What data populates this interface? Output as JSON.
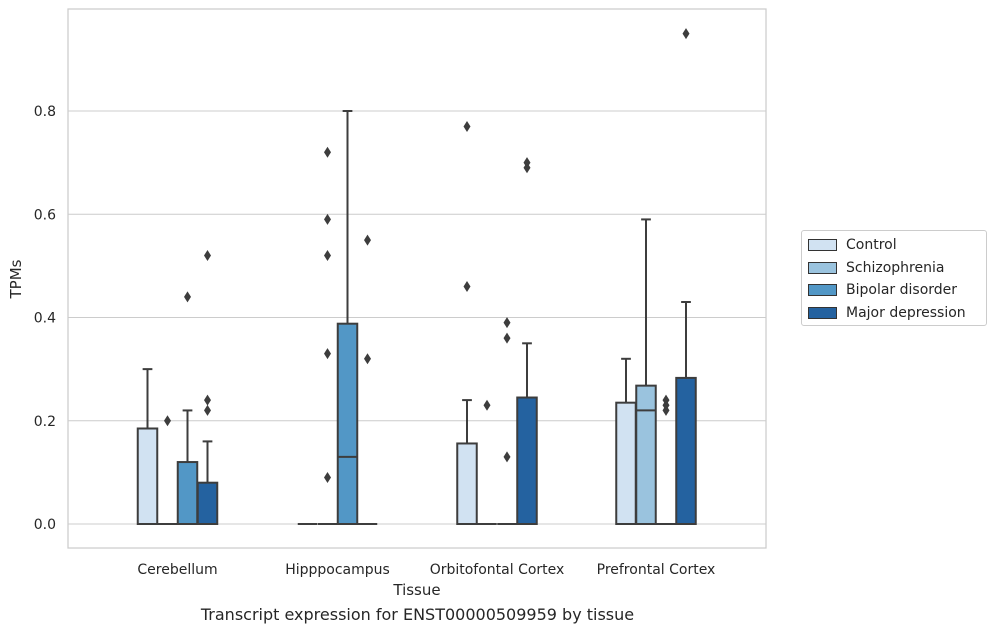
{
  "caption": "Transcript expression for ENST00000509959 by tissue",
  "chart_data": {
    "type": "box",
    "xlabel": "Tissue",
    "ylabel": "TPMs",
    "ylim": [
      -0.045,
      0.98
    ],
    "yticks": [
      0.0,
      0.2,
      0.4,
      0.6,
      0.8
    ],
    "ytick_labels": [
      "0.0",
      "0.2",
      "0.4",
      "0.6",
      "0.8"
    ],
    "grid": "horizontal",
    "legend_position": "right",
    "categories": [
      "Cerebellum",
      "Hipppocampus",
      "Orbitofontal Cortex",
      "Prefrontal Cortex"
    ],
    "series": [
      {
        "name": "Control",
        "color": "#d1e2f2",
        "boxes": [
          {
            "q1": 0.0,
            "median": 0.0,
            "q3": 0.185,
            "whisker_low": 0.0,
            "whisker_high": 0.3,
            "outliers": []
          },
          {
            "q1": 0.0,
            "median": 0.0,
            "q3": 0.0,
            "whisker_low": 0.0,
            "whisker_high": 0.0,
            "outliers": []
          },
          {
            "q1": 0.0,
            "median": 0.0,
            "q3": 0.156,
            "whisker_low": 0.0,
            "whisker_high": 0.24,
            "outliers": [
              0.46,
              0.77
            ]
          },
          {
            "q1": 0.0,
            "median": 0.0,
            "q3": 0.235,
            "whisker_low": 0.0,
            "whisker_high": 0.32,
            "outliers": []
          }
        ]
      },
      {
        "name": "Schizophrenia",
        "color": "#9ac3de",
        "boxes": [
          {
            "q1": 0.0,
            "median": 0.0,
            "q3": 0.0,
            "whisker_low": 0.0,
            "whisker_high": 0.0,
            "outliers": [
              0.2
            ]
          },
          {
            "q1": 0.0,
            "median": 0.0,
            "q3": 0.0,
            "whisker_low": 0.0,
            "whisker_high": 0.0,
            "outliers": [
              0.09,
              0.33,
              0.52,
              0.59,
              0.72
            ]
          },
          {
            "q1": 0.0,
            "median": 0.0,
            "q3": 0.0,
            "whisker_low": 0.0,
            "whisker_high": 0.0,
            "outliers": [
              0.23
            ]
          },
          {
            "q1": 0.0,
            "median": 0.22,
            "q3": 0.268,
            "whisker_low": 0.0,
            "whisker_high": 0.59,
            "outliers": []
          }
        ]
      },
      {
        "name": "Bipolar disorder",
        "color": "#5297c6",
        "boxes": [
          {
            "q1": 0.0,
            "median": 0.0,
            "q3": 0.12,
            "whisker_low": 0.0,
            "whisker_high": 0.22,
            "outliers": [
              0.44
            ]
          },
          {
            "q1": 0.0,
            "median": 0.13,
            "q3": 0.388,
            "whisker_low": 0.0,
            "whisker_high": 0.8,
            "outliers": []
          },
          {
            "q1": 0.0,
            "median": 0.0,
            "q3": 0.0,
            "whisker_low": 0.0,
            "whisker_high": 0.0,
            "outliers": [
              0.13,
              0.36,
              0.39
            ]
          },
          {
            "q1": 0.0,
            "median": 0.0,
            "q3": 0.0,
            "whisker_low": 0.0,
            "whisker_high": 0.0,
            "outliers": [
              0.22,
              0.23,
              0.24
            ]
          }
        ]
      },
      {
        "name": "Major depression",
        "color": "#2462a0",
        "boxes": [
          {
            "q1": 0.0,
            "median": 0.0,
            "q3": 0.08,
            "whisker_low": 0.0,
            "whisker_high": 0.16,
            "outliers": [
              0.22,
              0.24,
              0.52
            ]
          },
          {
            "q1": 0.0,
            "median": 0.0,
            "q3": 0.0,
            "whisker_low": 0.0,
            "whisker_high": 0.0,
            "outliers": [
              0.32,
              0.55
            ]
          },
          {
            "q1": 0.0,
            "median": 0.0,
            "q3": 0.245,
            "whisker_low": 0.0,
            "whisker_high": 0.35,
            "outliers": [
              0.69,
              0.7
            ]
          },
          {
            "q1": 0.0,
            "median": 0.0,
            "q3": 0.283,
            "whisker_low": 0.0,
            "whisker_high": 0.43,
            "outliers": [
              0.95
            ]
          }
        ]
      }
    ]
  }
}
